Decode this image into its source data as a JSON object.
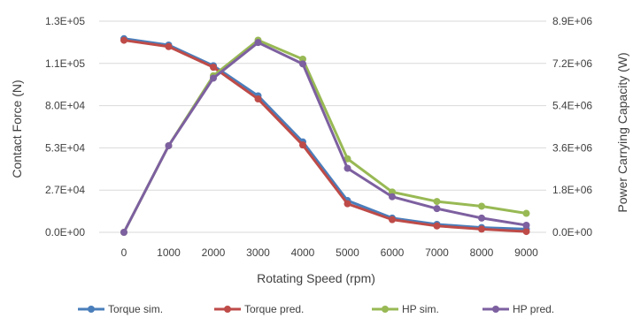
{
  "chart_data": {
    "type": "line",
    "x_label": "Rotating Speed (rpm)",
    "y_left_label": "Contact Force (N)",
    "y_right_label": "Power Carrying Capacity (W)",
    "x": [
      0,
      1000,
      2000,
      3000,
      4000,
      5000,
      6000,
      7000,
      8000,
      9000
    ],
    "x_ticks": [
      "0",
      "1000",
      "2000",
      "3000",
      "4000",
      "5000",
      "6000",
      "7000",
      "8000",
      "9000"
    ],
    "y_left_ticks": [
      "0.0E+00",
      "2.7E+04",
      "5.3E+04",
      "8.0E+04",
      "1.1E+05",
      "1.3E+05"
    ],
    "y_right_ticks": [
      "0.0E+00",
      "1.8E+06",
      "3.6E+06",
      "5.4E+06",
      "7.2E+06",
      "8.9E+06"
    ],
    "y_left_range": [
      0,
      133000
    ],
    "y_right_range": [
      0,
      8900000
    ],
    "grid": "horizontal",
    "legend_position": "bottom",
    "series": [
      {
        "name": "Torque sim.",
        "axis": "left",
        "color": "#4a7ebb",
        "values": [
          122000,
          118000,
          105000,
          86000,
          57000,
          20000,
          9000,
          5000,
          3000,
          2000
        ]
      },
      {
        "name": "Torque pred.",
        "axis": "left",
        "color": "#be4b48",
        "values": [
          121000,
          117000,
          104000,
          84000,
          55000,
          18000,
          8000,
          4000,
          2000,
          500
        ]
      },
      {
        "name": "HP sim.",
        "axis": "right",
        "color": "#98b954",
        "values": [
          0,
          3650000,
          6600000,
          8100000,
          7300000,
          3100000,
          1700000,
          1300000,
          1100000,
          800000
        ]
      },
      {
        "name": "HP pred.",
        "axis": "right",
        "color": "#7d60a0",
        "values": [
          0,
          3650000,
          6500000,
          8000000,
          7100000,
          2700000,
          1500000,
          1000000,
          600000,
          300000
        ]
      }
    ]
  }
}
